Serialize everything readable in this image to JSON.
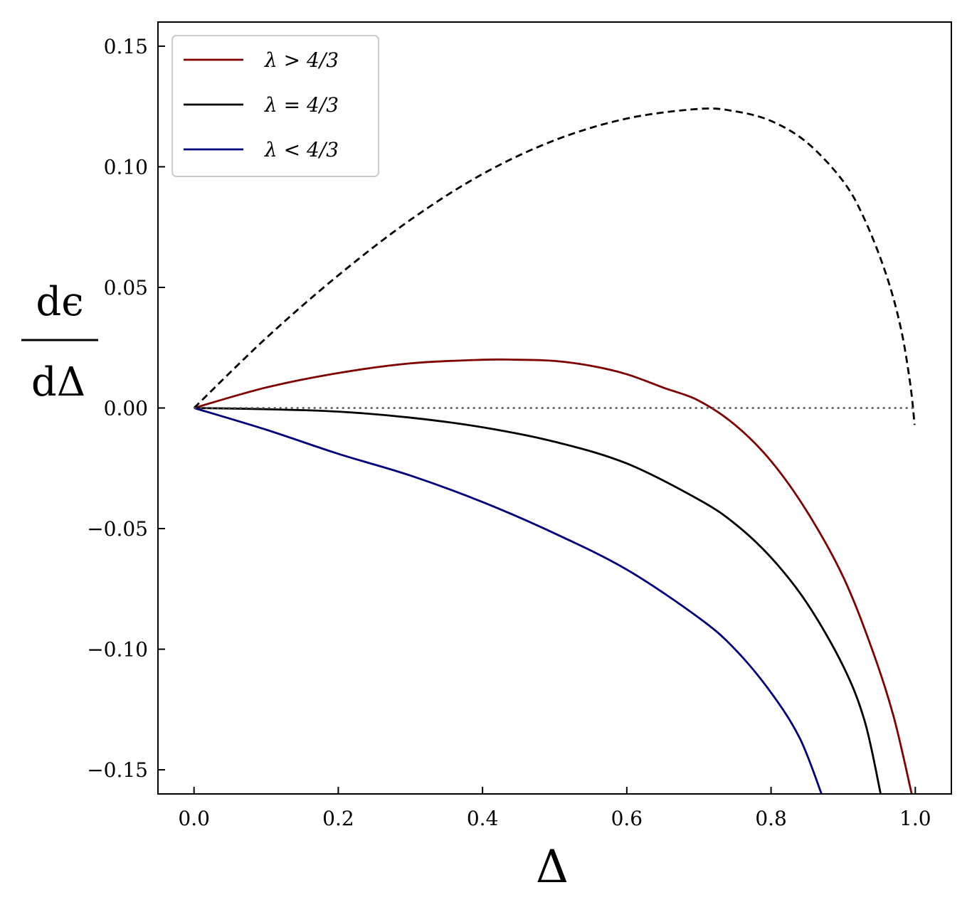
{
  "chart_data": {
    "type": "line",
    "xlabel": "Δ",
    "ylabel_numerator": "dϵ",
    "ylabel_denominator": "dΔ",
    "xlim": [
      -0.05,
      1.05
    ],
    "ylim": [
      -0.16,
      0.16
    ],
    "xticks": [
      {
        "value": 0.0,
        "label": "0.0"
      },
      {
        "value": 0.2,
        "label": "0.2"
      },
      {
        "value": 0.4,
        "label": "0.4"
      },
      {
        "value": 0.6,
        "label": "0.6"
      },
      {
        "value": 0.8,
        "label": "0.8"
      },
      {
        "value": 1.0,
        "label": "1.0"
      }
    ],
    "yticks": [
      {
        "value": 0.15,
        "label": "0.15"
      },
      {
        "value": 0.1,
        "label": "0.10"
      },
      {
        "value": 0.05,
        "label": "0.05"
      },
      {
        "value": 0.0,
        "label": "0.00"
      },
      {
        "value": -0.05,
        "label": "−0.05"
      },
      {
        "value": -0.1,
        "label": "−0.10"
      },
      {
        "value": -0.15,
        "label": "−0.15"
      }
    ],
    "grid": false,
    "legend_position": "top-left",
    "series": [
      {
        "name": "λ > 4/3",
        "color": "#800000",
        "style": "solid",
        "in_legend": true,
        "points": [
          [
            0,
            0
          ],
          [
            0.1,
            0.0085
          ],
          [
            0.2,
            0.0145
          ],
          [
            0.3,
            0.0185
          ],
          [
            0.4,
            0.02
          ],
          [
            0.45,
            0.02
          ],
          [
            0.5,
            0.0195
          ],
          [
            0.55,
            0.0175
          ],
          [
            0.6,
            0.014
          ],
          [
            0.65,
            0.0085
          ],
          [
            0.7,
            0.003
          ],
          [
            0.75,
            -0.007
          ],
          [
            0.8,
            -0.022
          ],
          [
            0.85,
            -0.043
          ],
          [
            0.9,
            -0.07
          ],
          [
            0.94,
            -0.1
          ],
          [
            0.97,
            -0.128
          ],
          [
            0.995,
            -0.16
          ]
        ]
      },
      {
        "name": "λ = 4/3",
        "color": "#000000",
        "style": "solid",
        "in_legend": true,
        "points": [
          [
            0,
            0
          ],
          [
            0.1,
            -0.0005
          ],
          [
            0.2,
            -0.0015
          ],
          [
            0.3,
            -0.004
          ],
          [
            0.4,
            -0.008
          ],
          [
            0.5,
            -0.014
          ],
          [
            0.6,
            -0.023
          ],
          [
            0.7,
            -0.038
          ],
          [
            0.75,
            -0.048
          ],
          [
            0.8,
            -0.062
          ],
          [
            0.85,
            -0.081
          ],
          [
            0.9,
            -0.107
          ],
          [
            0.93,
            -0.13
          ],
          [
            0.952,
            -0.16
          ]
        ]
      },
      {
        "name": "λ < 4/3",
        "color": "#00007f",
        "style": "solid",
        "in_legend": true,
        "points": [
          [
            0,
            0
          ],
          [
            0.1,
            -0.009
          ],
          [
            0.2,
            -0.019
          ],
          [
            0.3,
            -0.028
          ],
          [
            0.4,
            -0.039
          ],
          [
            0.5,
            -0.052
          ],
          [
            0.6,
            -0.067
          ],
          [
            0.7,
            -0.087
          ],
          [
            0.75,
            -0.1
          ],
          [
            0.8,
            -0.118
          ],
          [
            0.84,
            -0.137
          ],
          [
            0.87,
            -0.16
          ]
        ]
      },
      {
        "color": "#000000",
        "style": "dashed",
        "in_legend": false,
        "points": [
          [
            0,
            0
          ],
          [
            0.1,
            0.029
          ],
          [
            0.2,
            0.055
          ],
          [
            0.3,
            0.078
          ],
          [
            0.4,
            0.097
          ],
          [
            0.5,
            0.111
          ],
          [
            0.6,
            0.12
          ],
          [
            0.7,
            0.124
          ],
          [
            0.75,
            0.123
          ],
          [
            0.8,
            0.119
          ],
          [
            0.85,
            0.11
          ],
          [
            0.9,
            0.094
          ],
          [
            0.93,
            0.078
          ],
          [
            0.96,
            0.055
          ],
          [
            0.98,
            0.033
          ],
          [
            0.993,
            0.01
          ],
          [
            0.999,
            -0.007
          ]
        ]
      },
      {
        "color": "#555555",
        "style": "dotted",
        "in_legend": false,
        "points": [
          [
            0,
            0
          ],
          [
            1.0,
            0
          ]
        ]
      }
    ]
  }
}
